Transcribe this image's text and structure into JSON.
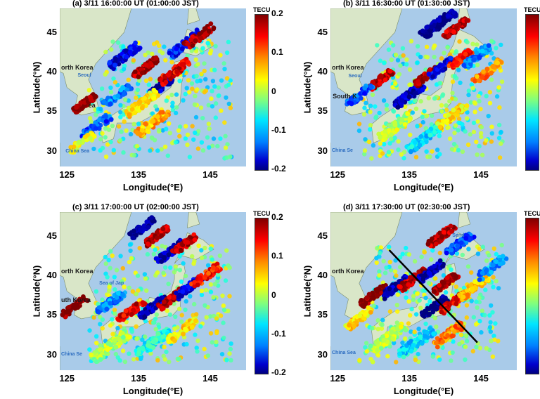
{
  "panels": [
    {
      "title": "(a) 3/11 16:00:00 UT (01:00:00 JST)",
      "labels": [
        "orth Korea",
        "Seoul",
        "ea",
        "China Sea"
      ]
    },
    {
      "title": "(b) 3/11 16:30:00 UT (01:30:00 JST)",
      "labels": [
        "orth Korea",
        "Seoul",
        "South K",
        "China Se"
      ]
    },
    {
      "title": "(c) 3/11 17:00:00 UT (02:00:00 JST)",
      "labels": [
        "orth Korea",
        "uth Korea",
        "Sea of Jap",
        "China Se"
      ]
    },
    {
      "title": "(d) 3/11 17:30:00 UT (02:30:00 JST)",
      "labels": [
        "orth Korea",
        "China Sea",
        "Send"
      ]
    }
  ],
  "axes": {
    "xlabel": "Longitude(°E)",
    "ylabel": "Latitude(°N)",
    "xticks": [
      "125",
      "135",
      "145"
    ],
    "xtick_values": [
      125,
      135,
      145
    ],
    "yticks": [
      "45",
      "40",
      "35",
      "30"
    ],
    "ytick_values": [
      45,
      40,
      35,
      30
    ],
    "xlim": [
      124,
      150
    ],
    "ylim": [
      28,
      48
    ]
  },
  "colorbar": {
    "unit": "TECU",
    "ticks": [
      "0.2",
      "0.1",
      "0",
      "-0.1",
      "-0.2"
    ],
    "range": [
      -0.2,
      0.2
    ],
    "colormap": "jet"
  },
  "annotation": {
    "panel": "d",
    "type": "black line across Japan (NW to SE)"
  },
  "colors": {
    "sea": "#a9cbe9",
    "land": "#d9e6c8"
  }
}
